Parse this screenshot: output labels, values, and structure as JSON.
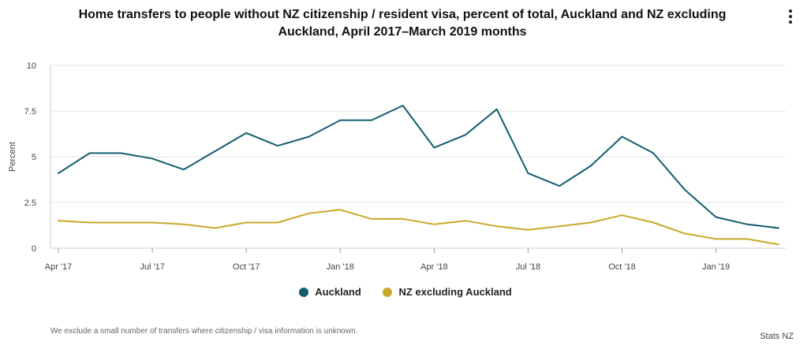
{
  "header": {
    "title_line1": "Home transfers to people without NZ citizenship / resident visa, percent of total, Auckland and NZ excluding",
    "title_line2": "Auckland, April 2017–March 2019 months",
    "menu_icon": "vertical-ellipsis-icon"
  },
  "chart_data": {
    "type": "line",
    "title": "Home transfers to people without NZ citizenship / resident visa, percent of total, Auckland and NZ excluding Auckland, April 2017–March 2019 months",
    "ylabel": "Percent",
    "xlabel": "",
    "ylim": [
      0,
      10
    ],
    "yticks": [
      0,
      2.5,
      5,
      7.5,
      10
    ],
    "ytick_labels": [
      "0",
      "2.5",
      "5",
      "7.5",
      "10"
    ],
    "x": [
      "Apr 2017",
      "May 2017",
      "Jun 2017",
      "Jul 2017",
      "Aug 2017",
      "Sep 2017",
      "Oct 2017",
      "Nov 2017",
      "Dec 2017",
      "Jan 2018",
      "Feb 2018",
      "Mar 2018",
      "Apr 2018",
      "May 2018",
      "Jun 2018",
      "Jul 2018",
      "Aug 2018",
      "Sep 2018",
      "Oct 2018",
      "Nov 2018",
      "Dec 2018",
      "Jan 2019",
      "Feb 2019",
      "Mar 2019"
    ],
    "xtick_indices": [
      0,
      3,
      6,
      9,
      12,
      15,
      18,
      21
    ],
    "xtick_labels": [
      "Apr '17",
      "Jul '17",
      "Oct '17",
      "Jan '18",
      "Apr '18",
      "Jul '18",
      "Oct '18",
      "Jan '19"
    ],
    "grid": true,
    "legend_position": "bottom",
    "series": [
      {
        "name": "Auckland",
        "color": "#135e6e",
        "values": [
          4.1,
          5.2,
          5.2,
          4.9,
          4.3,
          5.3,
          6.3,
          5.6,
          6.1,
          7.0,
          7.0,
          7.8,
          5.5,
          6.2,
          7.6,
          4.1,
          3.4,
          4.5,
          6.1,
          5.2,
          3.2,
          1.7,
          1.3,
          1.1
        ]
      },
      {
        "name": "NZ excluding Auckland",
        "color": "#c9a82a",
        "values": [
          1.5,
          1.4,
          1.4,
          1.4,
          1.3,
          1.1,
          1.4,
          1.4,
          1.9,
          2.1,
          1.6,
          1.6,
          1.3,
          1.5,
          1.2,
          1.0,
          1.2,
          1.4,
          1.8,
          1.4,
          0.8,
          0.5,
          0.5,
          0.2
        ]
      }
    ]
  },
  "footer": {
    "note": "We exclude a small number of transfers where citizenship / visa information is unknown.",
    "source": "Stats NZ"
  }
}
